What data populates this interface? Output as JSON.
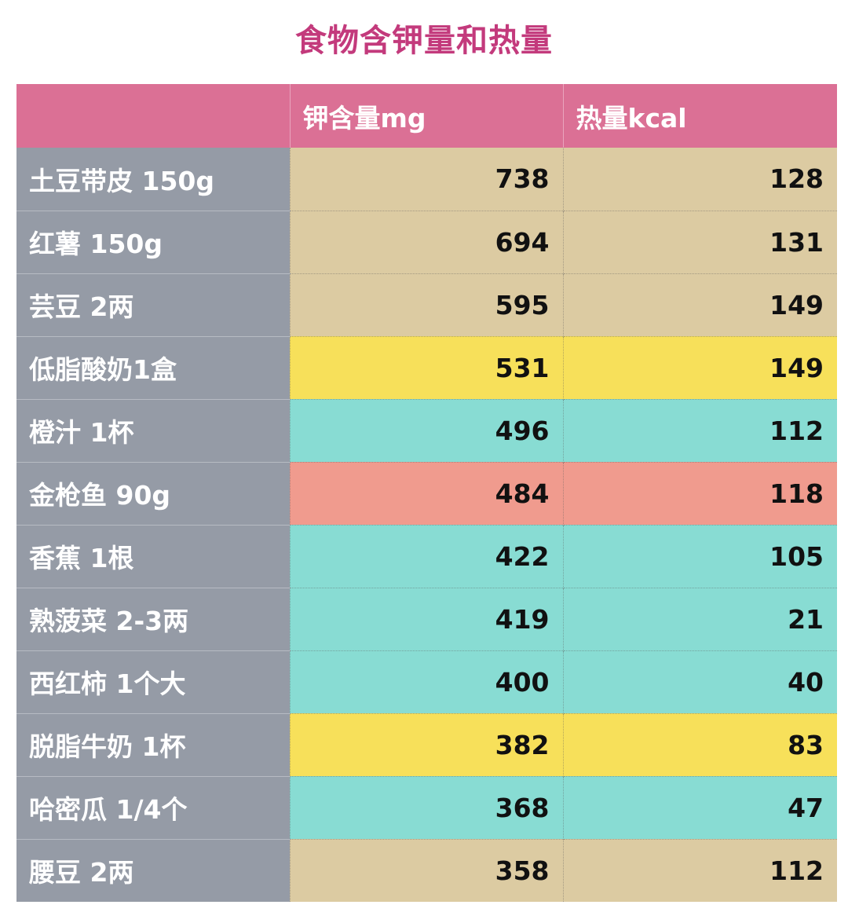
{
  "title": "食物含钾量和热量",
  "headers": [
    "",
    "钾含量mg",
    "热量kcal"
  ],
  "colors": {
    "title": "#c33a7c",
    "header_bg": "#db7095",
    "name_bg": "#959ba6",
    "tan": "#dccba2",
    "yellow": "#f7e05a",
    "teal": "#88dcd3",
    "salmon": "#f09b8e"
  },
  "rows": [
    {
      "name": "土豆带皮 150g",
      "potassium": "738",
      "kcal": "128",
      "color": "#dccba2"
    },
    {
      "name": "红薯 150g",
      "potassium": "694",
      "kcal": "131",
      "color": "#dccba2"
    },
    {
      "name": "芸豆 2两",
      "potassium": "595",
      "kcal": "149",
      "color": "#dccba2"
    },
    {
      "name": "低脂酸奶1盒",
      "potassium": "531",
      "kcal": "149",
      "color": "#f7e05a"
    },
    {
      "name": "橙汁 1杯",
      "potassium": "496",
      "kcal": "112",
      "color": "#88dcd3"
    },
    {
      "name": "金枪鱼 90g",
      "potassium": "484",
      "kcal": "118",
      "color": "#f09b8e"
    },
    {
      "name": "香蕉 1根",
      "potassium": "422",
      "kcal": "105",
      "color": "#88dcd3"
    },
    {
      "name": "熟菠菜 2-3两",
      "potassium": "419",
      "kcal": "21",
      "color": "#88dcd3"
    },
    {
      "name": "西红柿 1个大",
      "potassium": "400",
      "kcal": "40",
      "color": "#88dcd3"
    },
    {
      "name": "脱脂牛奶 1杯",
      "potassium": "382",
      "kcal": "83",
      "color": "#f7e05a"
    },
    {
      "name": "哈密瓜 1/4个",
      "potassium": "368",
      "kcal": "47",
      "color": "#88dcd3"
    },
    {
      "name": "腰豆 2两",
      "potassium": "358",
      "kcal": "112",
      "color": "#dccba2"
    }
  ]
}
